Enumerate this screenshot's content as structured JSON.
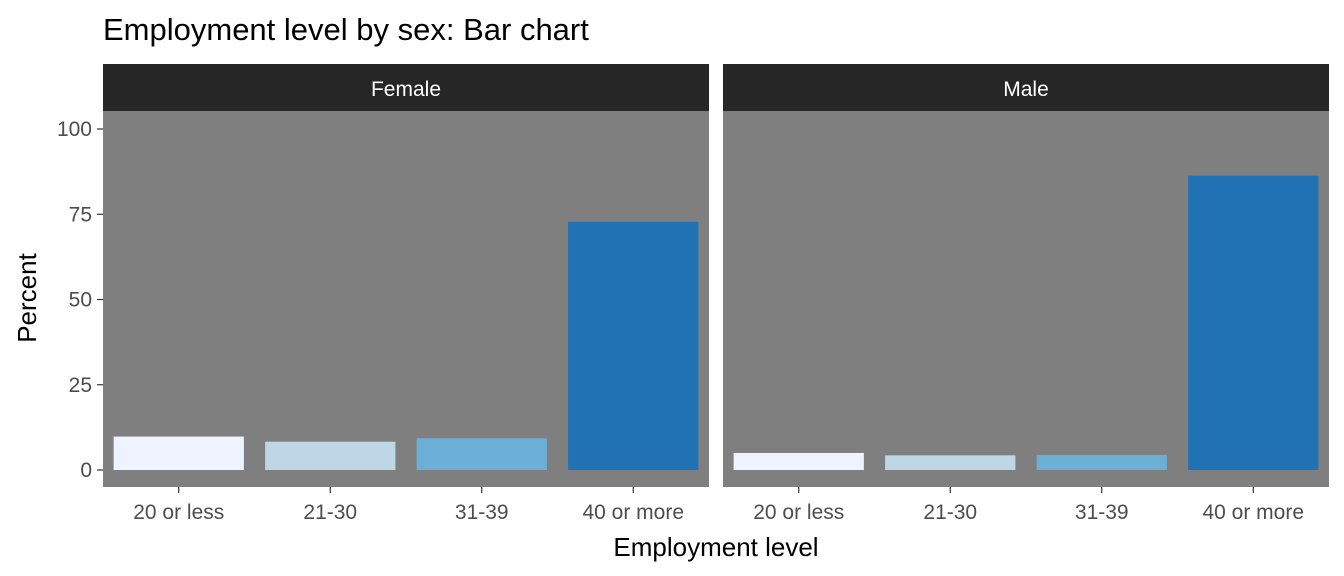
{
  "chart_data": {
    "type": "bar",
    "title": "Employment level by sex: Bar chart",
    "xlabel": "Employment level",
    "ylabel": "Percent",
    "ylim": [
      0,
      110
    ],
    "yticks": [
      "0",
      "25",
      "50",
      "75",
      "100"
    ],
    "ytick_values": [
      0,
      25,
      50,
      75,
      100
    ],
    "categories": [
      "20 or less",
      "21-30",
      "31-39",
      "40 or more"
    ],
    "bar_colors": [
      "#eff3ff",
      "#bdd7e7",
      "#6baed6",
      "#2171b5"
    ],
    "panel_background": "#7f7f7f",
    "strip_background": "#262626",
    "facets": [
      {
        "name": "Female",
        "values": [
          9.8,
          8.3,
          9.3,
          72.8
        ]
      },
      {
        "name": "Male",
        "values": [
          5.0,
          4.3,
          4.4,
          86.3
        ]
      }
    ],
    "grid": false,
    "legend": "none"
  }
}
